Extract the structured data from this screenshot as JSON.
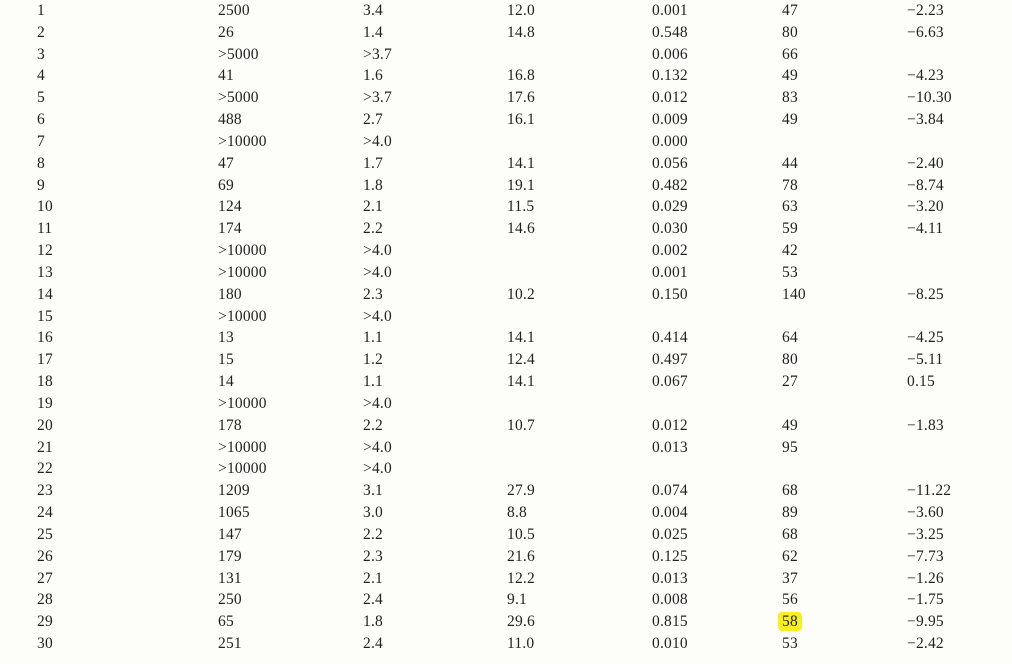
{
  "page": {
    "background_color": "#fdfdfa",
    "text_color": "#222222"
  },
  "highlight": {
    "color": "#f9ee21",
    "row_index": 28,
    "col_index": 5,
    "value": "58"
  },
  "table": {
    "rows": [
      [
        "1",
        "2500",
        "3.4",
        "12.0",
        "0.001",
        "47",
        "−2.23"
      ],
      [
        "2",
        "26",
        "1.4",
        "14.8",
        "0.548",
        "80",
        "−6.63"
      ],
      [
        "3",
        ">5000",
        ">3.7",
        "",
        "0.006",
        "66",
        ""
      ],
      [
        "4",
        "41",
        "1.6",
        "16.8",
        "0.132",
        "49",
        "−4.23"
      ],
      [
        "5",
        ">5000",
        ">3.7",
        "17.6",
        "0.012",
        "83",
        "−10.30"
      ],
      [
        "6",
        "488",
        "2.7",
        "16.1",
        "0.009",
        "49",
        "−3.84"
      ],
      [
        "7",
        ">10000",
        ">4.0",
        "",
        "0.000",
        "",
        ""
      ],
      [
        "8",
        "47",
        "1.7",
        "14.1",
        "0.056",
        "44",
        "−2.40"
      ],
      [
        "9",
        "69",
        "1.8",
        "19.1",
        "0.482",
        "78",
        "−8.74"
      ],
      [
        "10",
        "124",
        "2.1",
        "11.5",
        "0.029",
        "63",
        "−3.20"
      ],
      [
        "11",
        "174",
        "2.2",
        "14.6",
        "0.030",
        "59",
        "−4.11"
      ],
      [
        "12",
        ">10000",
        ">4.0",
        "",
        "0.002",
        "42",
        ""
      ],
      [
        "13",
        ">10000",
        ">4.0",
        "",
        "0.001",
        "53",
        ""
      ],
      [
        "14",
        "180",
        "2.3",
        "10.2",
        "0.150",
        "140",
        "−8.25"
      ],
      [
        "15",
        ">10000",
        ">4.0",
        "",
        "",
        "",
        ""
      ],
      [
        "16",
        "13",
        "1.1",
        "14.1",
        "0.414",
        "64",
        "−4.25"
      ],
      [
        "17",
        "15",
        "1.2",
        "12.4",
        "0.497",
        "80",
        "−5.11"
      ],
      [
        "18",
        "14",
        "1.1",
        "14.1",
        "0.067",
        "27",
        "0.15"
      ],
      [
        "19",
        ">10000",
        ">4.0",
        "",
        "",
        "",
        ""
      ],
      [
        "20",
        "178",
        "2.2",
        "10.7",
        "0.012",
        "49",
        "−1.83"
      ],
      [
        "21",
        ">10000",
        ">4.0",
        "",
        "0.013",
        "95",
        ""
      ],
      [
        "22",
        ">10000",
        ">4.0",
        "",
        "",
        "",
        ""
      ],
      [
        "23",
        "1209",
        "3.1",
        "27.9",
        "0.074",
        "68",
        "−11.22"
      ],
      [
        "24",
        "1065",
        "3.0",
        "8.8",
        "0.004",
        "89",
        "−3.60"
      ],
      [
        "25",
        "147",
        "2.2",
        "10.5",
        "0.025",
        "68",
        "−3.25"
      ],
      [
        "26",
        "179",
        "2.3",
        "21.6",
        "0.125",
        "62",
        "−7.73"
      ],
      [
        "27",
        "131",
        "2.1",
        "12.2",
        "0.013",
        "37",
        "−1.26"
      ],
      [
        "28",
        "250",
        "2.4",
        "9.1",
        "0.008",
        "56",
        "−1.75"
      ],
      [
        "29",
        "65",
        "1.8",
        "29.6",
        "0.815",
        "58",
        "−9.95"
      ],
      [
        "30",
        "251",
        "2.4",
        "11.0",
        "0.010",
        "53",
        "−2.42"
      ]
    ]
  }
}
